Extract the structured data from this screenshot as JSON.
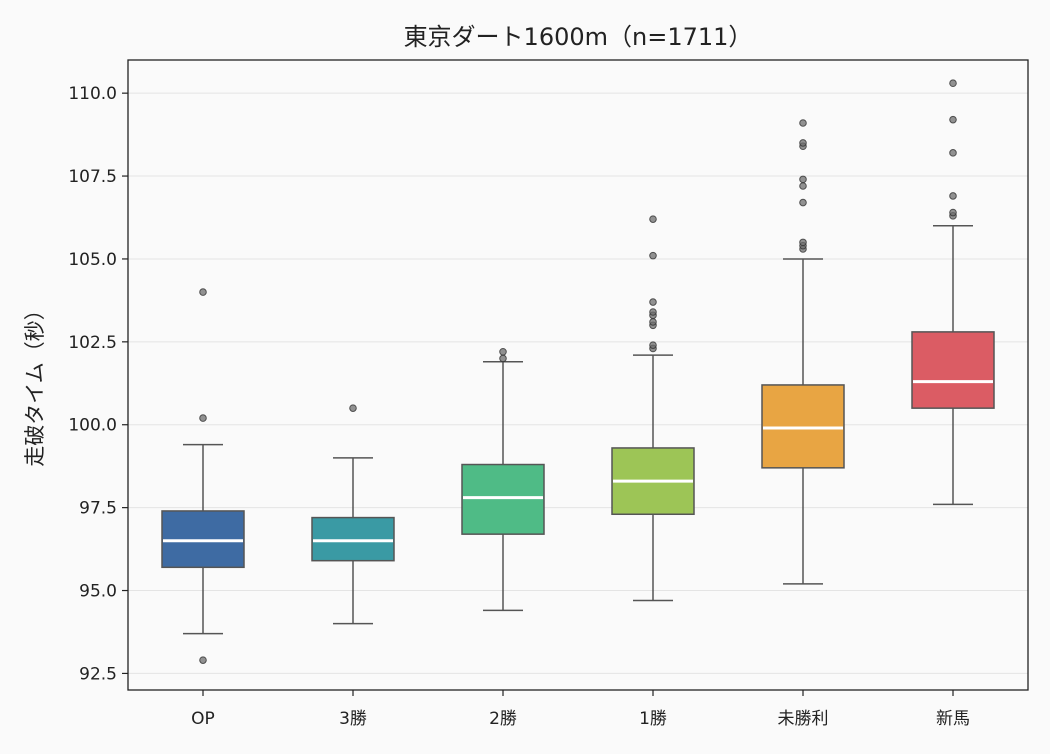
{
  "chart_data": {
    "type": "box",
    "title": "東京ダート1600m（n=1711）",
    "xlabel": "",
    "ylabel": "走破タイム（秒）",
    "ylim": [
      92.0,
      111.0
    ],
    "yticks": [
      "92.5",
      "95.0",
      "97.5",
      "100.0",
      "102.5",
      "105.0",
      "107.5",
      "110.0"
    ],
    "grid": "horizontal",
    "categories": [
      "OP",
      "3勝",
      "2勝",
      "1勝",
      "未勝利",
      "新馬"
    ],
    "colors": [
      "#3e6ba3",
      "#3a9aa4",
      "#4fbb86",
      "#9dc556",
      "#e8a543",
      "#db5c64"
    ],
    "boxes": [
      {
        "category": "OP",
        "whisker_low": 93.7,
        "q1": 95.7,
        "median": 96.5,
        "q3": 97.4,
        "whisker_high": 99.4,
        "outliers": [
          92.9,
          100.2,
          104.0
        ]
      },
      {
        "category": "3勝",
        "whisker_low": 94.0,
        "q1": 95.9,
        "median": 96.5,
        "q3": 97.2,
        "whisker_high": 99.0,
        "outliers": [
          100.5
        ]
      },
      {
        "category": "2勝",
        "whisker_low": 94.4,
        "q1": 96.7,
        "median": 97.8,
        "q3": 98.8,
        "whisker_high": 101.9,
        "outliers": [
          102.0,
          102.2
        ]
      },
      {
        "category": "1勝",
        "whisker_low": 94.7,
        "q1": 97.3,
        "median": 98.3,
        "q3": 99.3,
        "whisker_high": 102.1,
        "outliers": [
          102.3,
          102.4,
          103.0,
          103.1,
          103.3,
          103.4,
          103.7,
          105.1,
          106.2
        ]
      },
      {
        "category": "未勝利",
        "whisker_low": 95.2,
        "q1": 98.7,
        "median": 99.9,
        "q3": 101.2,
        "whisker_high": 105.0,
        "outliers": [
          105.3,
          105.4,
          105.5,
          106.7,
          107.2,
          107.4,
          108.4,
          108.5,
          109.1
        ]
      },
      {
        "category": "新馬",
        "whisker_low": 97.6,
        "q1": 100.5,
        "median": 101.3,
        "q3": 102.8,
        "whisker_high": 106.0,
        "outliers": [
          106.3,
          106.4,
          106.9,
          108.2,
          109.2,
          110.3
        ]
      }
    ]
  }
}
